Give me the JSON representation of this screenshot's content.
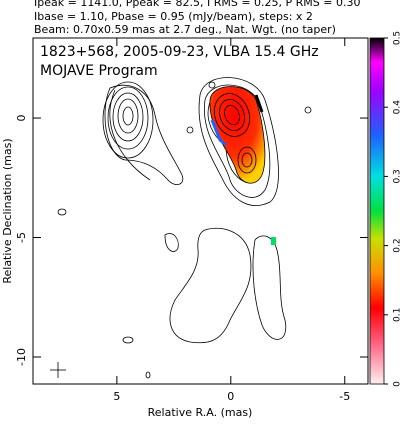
{
  "chart_data": {
    "type": "image",
    "header": [
      "Ipeak = 1141.0, Ppeak = 82.5, I RMS = 0.25, P RMS = 0.30",
      "Ibase = 1.10, Pbase = 0.95 (mJy/beam), steps: x 2",
      "Beam: 0.70x0.59 mas at 2.7 deg., Nat. Wgt. (no taper)"
    ],
    "title": "1823+568, 2005-09-23, VLBA 15.4 GHz",
    "subtitle": "MOJAVE Program",
    "xlabel": "Relative R.A. (mas)",
    "ylabel": "Relative Declination (mas)",
    "xlim": [
      8.68,
      -6.02
    ],
    "xticks": [
      5,
      0,
      -5
    ],
    "ylim": [
      -11.13,
      3.35
    ],
    "yticks": [
      0,
      -5,
      -10
    ],
    "colorbar_lim": [
      0,
      0.5
    ],
    "colorbar_ticks": [
      0,
      0.1,
      0.2,
      0.3,
      0.4,
      0.5
    ]
  }
}
